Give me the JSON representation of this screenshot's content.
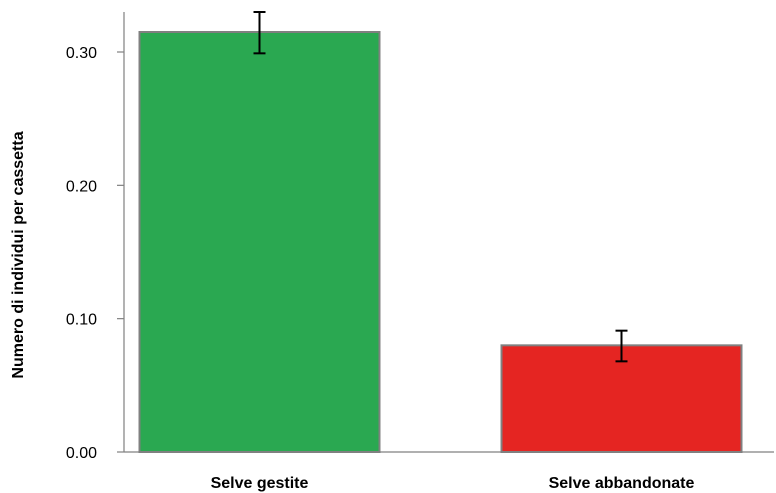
{
  "chart_data": {
    "type": "bar",
    "title": "",
    "xlabel": "",
    "ylabel": "Numero di individui per cassetta",
    "ylim": [
      0,
      0.33
    ],
    "yticks": [
      0.0,
      0.1,
      0.2,
      0.3
    ],
    "ytick_labels": [
      "0.00",
      "0.10",
      "0.20",
      "0.30"
    ],
    "categories": [
      "Selve gestite",
      "Selve abbandonate"
    ],
    "values": [
      0.315,
      0.08
    ],
    "error_low": [
      0.299,
      0.068
    ],
    "error_high": [
      0.33,
      0.091
    ],
    "bar_colors": [
      "#2aa851",
      "#e52522"
    ],
    "bar_edge_color": "#808080",
    "grid": false,
    "legend": "none"
  }
}
